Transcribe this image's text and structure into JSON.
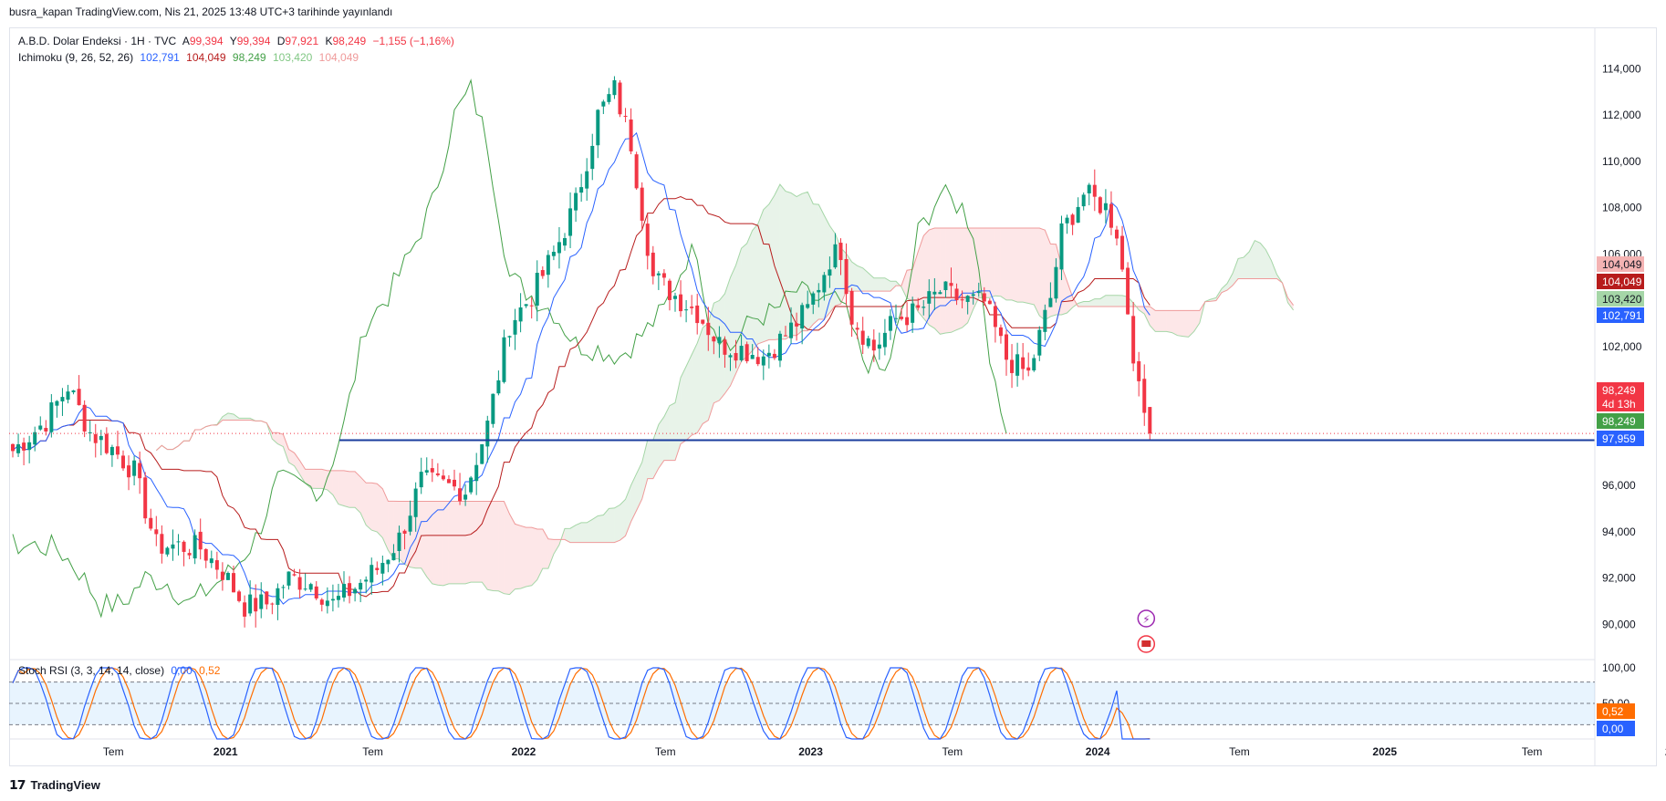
{
  "header": {
    "publish_line": "busra_kapan TradingView.com, Nis 21, 2025 13:48 UTC+3 tarihinde yayınlandı"
  },
  "legend_main": {
    "symbol": "A.B.D. Dolar Endeksi · 1H · TVC",
    "o_label": "A",
    "o_value": "99,394",
    "h_label": "Y",
    "h_value": "99,394",
    "l_label": "D",
    "l_value": "97,921",
    "c_label": "K",
    "c_value": "98,249",
    "change": "−1,155 (−1,16%)"
  },
  "legend_ichimoku": {
    "name": "Ichimoku (9, 26, 52, 26)",
    "values": [
      "102,791",
      "104,049",
      "98,249",
      "103,420",
      "104,049"
    ]
  },
  "legend_stoch": {
    "name": "Stoch RSI (3, 3, 14, 14, close)",
    "values": [
      "0,00",
      "0,52"
    ]
  },
  "footer": {
    "brand": "TradingView"
  },
  "colors": {
    "up": "#089981",
    "down": "#f23645",
    "conversion": "#2962ff",
    "base": "#b71c1c",
    "lagging": "#43a047",
    "span_a": "#a5d6a7",
    "span_b": "#ef9a9a",
    "cloud_green": "rgba(67,160,71,0.12)",
    "cloud_red": "rgba(242,54,69,0.12)",
    "hline": "#1a3d9e",
    "k_line": "#2962ff",
    "d_line": "#ff6d00",
    "rsi_band": "rgba(33,150,243,0.1)"
  },
  "chart_data": {
    "type": "candlestick",
    "interval": "1W",
    "price_axis": {
      "ticks": [
        "114,000",
        "112,000",
        "110,000",
        "108,000",
        "106,000",
        "104,000",
        "102,000",
        "100,000",
        "98,000",
        "96,000",
        "94,000",
        "92,000",
        "90,000"
      ],
      "ylim": [
        89,
        115
      ]
    },
    "time_axis": {
      "labels": [
        "Tem",
        "2021",
        "Tem",
        "2022",
        "Tem",
        "2023",
        "Tem",
        "2024",
        "Tem",
        "2025",
        "Tem",
        "2026"
      ]
    },
    "price_badges": [
      {
        "text": "104,049",
        "color": "#f4b3b3",
        "text_color": "#131722"
      },
      {
        "text": "104,049",
        "color": "#b71c1c",
        "text_color": "#ffffff"
      },
      {
        "text": "103,420",
        "color": "#a5d6a7",
        "text_color": "#131722"
      },
      {
        "text": "102,791",
        "color": "#2962ff",
        "text_color": "#ffffff"
      },
      {
        "text": "98,249",
        "color": "#f23645",
        "text_color": "#ffffff"
      },
      {
        "text": "4d 13h",
        "color": "#f23645",
        "text_color": "#ffffff"
      },
      {
        "text": "98,249",
        "color": "#43a047",
        "text_color": "#ffffff"
      },
      {
        "text": "97,959",
        "color": "#2962ff",
        "text_color": "#ffffff"
      }
    ],
    "horizontal_line": 97.959,
    "current_price": 98.249,
    "weeks": 248,
    "close_anchors": [
      [
        0,
        97.5
      ],
      [
        6,
        98.8
      ],
      [
        10,
        100.3
      ],
      [
        14,
        98.3
      ],
      [
        18,
        97.6
      ],
      [
        22,
        96.6
      ],
      [
        26,
        93.4
      ],
      [
        30,
        93.4
      ],
      [
        34,
        93.3
      ],
      [
        38,
        92.3
      ],
      [
        42,
        90.8
      ],
      [
        46,
        90.9
      ],
      [
        50,
        92.0
      ],
      [
        54,
        91.8
      ],
      [
        58,
        90.9
      ],
      [
        62,
        91.6
      ],
      [
        66,
        92.4
      ],
      [
        70,
        93.7
      ],
      [
        74,
        96.2
      ],
      [
        78,
        96.0
      ],
      [
        82,
        95.8
      ],
      [
        86,
        98.6
      ],
      [
        90,
        103.0
      ],
      [
        94,
        104.2
      ],
      [
        98,
        106.0
      ],
      [
        102,
        108.2
      ],
      [
        106,
        112.0
      ],
      [
        109,
        113.1
      ],
      [
        112,
        110.8
      ],
      [
        116,
        105.0
      ],
      [
        120,
        104.2
      ],
      [
        124,
        103.5
      ],
      [
        128,
        102.1
      ],
      [
        132,
        101.9
      ],
      [
        136,
        101.6
      ],
      [
        140,
        102.5
      ],
      [
        144,
        103.6
      ],
      [
        148,
        105.8
      ],
      [
        150,
        106.2
      ],
      [
        152,
        103.3
      ],
      [
        156,
        101.9
      ],
      [
        160,
        103.2
      ],
      [
        164,
        103.5
      ],
      [
        168,
        104.4
      ],
      [
        172,
        104.0
      ],
      [
        176,
        103.9
      ],
      [
        180,
        101.5
      ],
      [
        184,
        100.8
      ],
      [
        188,
        104.1
      ],
      [
        190,
        106.9
      ],
      [
        194,
        108.6
      ],
      [
        198,
        108.0
      ],
      [
        200,
        107.0
      ],
      [
        202,
        103.6
      ],
      [
        204,
        100.0
      ],
      [
        206,
        98.25
      ]
    ],
    "ichimoku": {
      "conversion_line": "Tenkan",
      "base_line": "Kijun",
      "lagging_span": "Chikou",
      "leading_span_a": "Senkou A",
      "leading_span_b": "Senkou B"
    },
    "stoch_rsi": {
      "axis_ticks": [
        "100,00",
        "50,00"
      ],
      "bands": [
        80,
        50,
        20
      ],
      "k_last": 0.0,
      "d_last": 0.52,
      "badges": [
        {
          "text": "0,52",
          "color": "#ff6d00"
        },
        {
          "text": "0,00",
          "color": "#2962ff"
        }
      ]
    }
  }
}
